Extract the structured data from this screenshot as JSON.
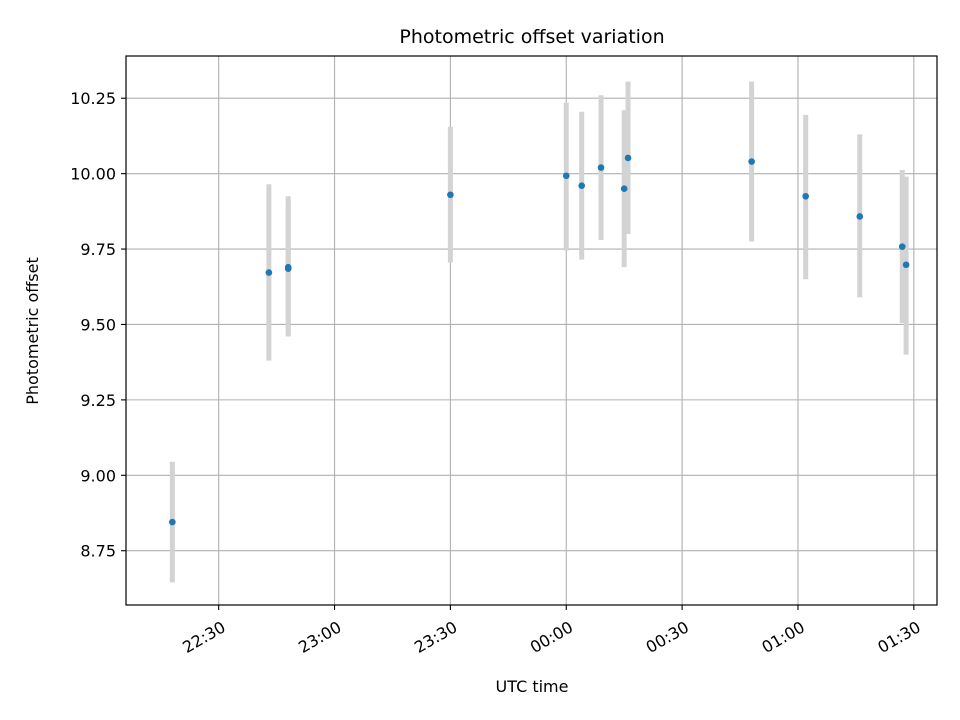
{
  "chart_data": {
    "type": "scatter",
    "title": "Photometric offset variation",
    "xlabel": "UTC time",
    "ylabel": "Photometric offset",
    "x_unit": "UTC time (HH:MM), day 1 starting 22:00",
    "xlim": [
      "22:06",
      "01:36"
    ],
    "ylim": [
      8.57,
      10.39
    ],
    "grid": true,
    "x_ticks": [
      "22:30",
      "23:00",
      "23:30",
      "00:00",
      "00:30",
      "01:00",
      "01:30"
    ],
    "y_ticks": [
      "8.75",
      "9.00",
      "9.25",
      "9.50",
      "9.75",
      "10.00",
      "10.25"
    ],
    "colors": {
      "point": "#1f77b4",
      "errorbar": "#d3d3d3",
      "grid": "#b0b0b0"
    },
    "series": [
      {
        "points": [
          {
            "x": "22:18",
            "y": 8.845,
            "yerr_low": 8.645,
            "yerr_high": 9.045
          },
          {
            "x": "22:43",
            "y": 9.672,
            "yerr_low": 9.38,
            "yerr_high": 9.965
          },
          {
            "x": "22:48",
            "y": 9.69,
            "yerr_low": 9.46,
            "yerr_high": 9.925
          },
          {
            "x": "22:48",
            "y": 9.685,
            "yerr_low": 9.47,
            "yerr_high": 9.905
          },
          {
            "x": "23:30",
            "y": 9.93,
            "yerr_low": 9.705,
            "yerr_high": 10.155
          },
          {
            "x": "00:00",
            "y": 9.993,
            "yerr_low": 9.745,
            "yerr_high": 10.235
          },
          {
            "x": "00:04",
            "y": 9.96,
            "yerr_low": 9.715,
            "yerr_high": 10.205
          },
          {
            "x": "00:09",
            "y": 10.02,
            "yerr_low": 9.78,
            "yerr_high": 10.26
          },
          {
            "x": "00:15",
            "y": 9.95,
            "yerr_low": 9.69,
            "yerr_high": 10.21
          },
          {
            "x": "00:16",
            "y": 10.052,
            "yerr_low": 9.8,
            "yerr_high": 10.305
          },
          {
            "x": "00:48",
            "y": 10.04,
            "yerr_low": 9.775,
            "yerr_high": 10.305
          },
          {
            "x": "01:02",
            "y": 9.925,
            "yerr_low": 9.65,
            "yerr_high": 10.195
          },
          {
            "x": "01:16",
            "y": 9.858,
            "yerr_low": 9.59,
            "yerr_high": 10.13
          },
          {
            "x": "01:27",
            "y": 9.758,
            "yerr_low": 9.505,
            "yerr_high": 10.012
          },
          {
            "x": "01:28",
            "y": 9.698,
            "yerr_low": 9.4,
            "yerr_high": 9.99
          }
        ]
      }
    ]
  }
}
